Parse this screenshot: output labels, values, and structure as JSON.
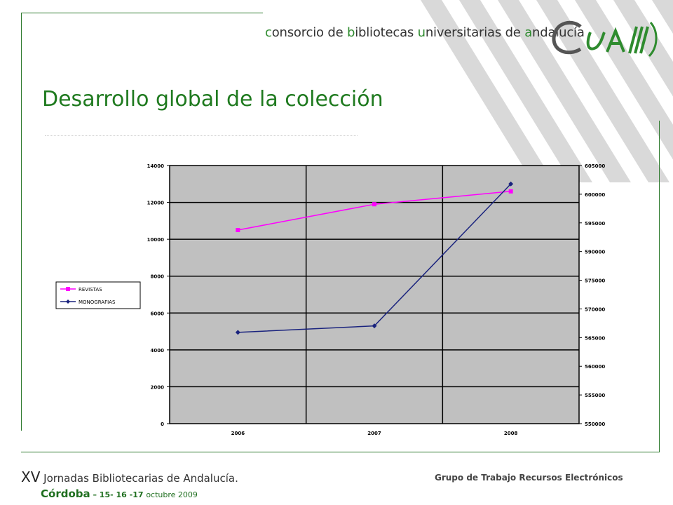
{
  "header": {
    "org_parts": [
      {
        "t": "c",
        "g": true
      },
      {
        "t": "onsorcio de ",
        "g": false
      },
      {
        "t": "b",
        "g": true
      },
      {
        "t": "ibliotecas ",
        "g": false
      },
      {
        "t": "u",
        "g": true
      },
      {
        "t": "niversitarias de ",
        "g": false
      },
      {
        "t": "a",
        "g": true
      },
      {
        "t": "ndalucía",
        "g": false
      }
    ],
    "logo_text": "CbuA"
  },
  "slide": {
    "title": "Desarrollo global de la colección"
  },
  "chart_data": {
    "type": "line",
    "categories": [
      "2006",
      "2007",
      "2008"
    ],
    "y_left": {
      "ticks": [
        "14000",
        "12000",
        "10000",
        "8000",
        "6000",
        "4000",
        "2000",
        "0"
      ],
      "ylim": [
        0,
        14000
      ]
    },
    "y_right": {
      "ticks": [
        "605000",
        "600000",
        "595000",
        "590000",
        "575000",
        "570000",
        "565000",
        "560000",
        "555000",
        "550000"
      ]
    },
    "series": [
      {
        "name": "REVISTAS",
        "axis": "left",
        "color": "#ff00ff",
        "marker": "square",
        "values": [
          10500,
          11900,
          12600
        ]
      },
      {
        "name": "MONOGRAFIAS",
        "axis": "right",
        "color": "#1a237e",
        "marker": "diamond",
        "values": [
          4950,
          5300,
          13000
        ],
        "values_axis_note": ""
      }
    ],
    "legend_placement": "left",
    "grid": true,
    "plot_background": "#c0c0c0"
  },
  "footer": {
    "xv": "XV",
    "event": " Jornadas Bibliotecarias de Andalucía.",
    "city": "Córdoba",
    "dates": " – 15- 16 -17 ",
    "month_year": "octubre 2009",
    "group": "Grupo de Trabajo Recursos Electrónicos"
  },
  "colors": {
    "green": "#2e8b2e",
    "frame": "#2d7a2d",
    "stripes": "#d9d9d9"
  }
}
